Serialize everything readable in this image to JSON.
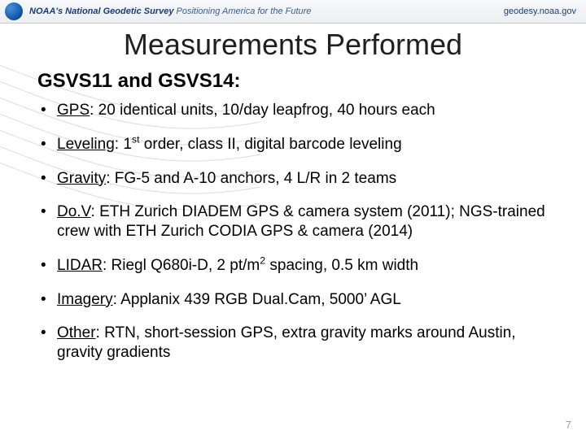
{
  "header": {
    "org_bold": "NOAA's National Geodetic Survey",
    "tagline": "Positioning America for the Future",
    "site": "geodesy.noaa.gov"
  },
  "title": "Measurements Performed",
  "subtitle": "GSVS11 and GSVS14:",
  "bullets": [
    {
      "label": "GPS",
      "rest": ": 20 identical units, 10/day leapfrog, 40 hours each"
    },
    {
      "label": "Leveling",
      "rest_html": ": 1<span class=\"sup\">st</span> order, class II, digital barcode leveling"
    },
    {
      "label": "Gravity",
      "rest": ": FG-5 and A-10 anchors, 4 L/R in 2 teams"
    },
    {
      "label": "Do.V",
      "rest": ": ETH Zurich DIADEM GPS & camera system (2011); NGS-trained crew with ETH Zurich CODIA GPS & camera (2014)"
    },
    {
      "label": "LIDAR",
      "rest_html": ":  Riegl Q680i-D, 2 pt/m<span class=\"sup\">2</span> spacing, 0.5 km width"
    },
    {
      "label": "Imagery",
      "rest": ":  Applanix 439 RGB Dual.Cam, 5000’ AGL"
    },
    {
      "label": "Other",
      "rest": ":  RTN, short-session GPS, extra gravity marks around Austin, gravity gradients"
    }
  ],
  "page_number": "7",
  "colors": {
    "title": "#1f1f1f",
    "header_text": "#1a3b7a",
    "swoosh": "#9fb0c4"
  }
}
